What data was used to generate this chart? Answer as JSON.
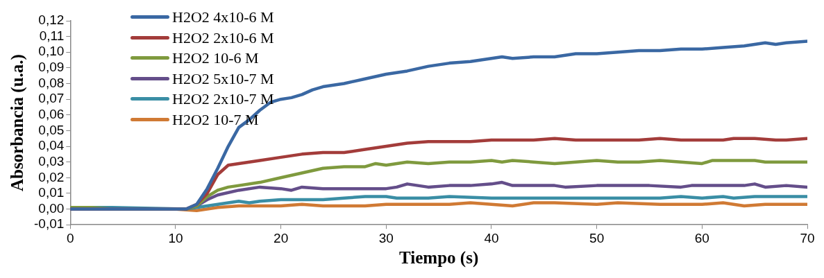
{
  "chart_data": {
    "type": "line",
    "xlabel": "Tiempo (s)",
    "ylabel": "Absorbancia (u.a.)",
    "legend": "top left",
    "marker": "none",
    "line_style": "solid",
    "xlim": [
      0,
      70
    ],
    "xticks": [
      0,
      10,
      20,
      30,
      40,
      50,
      60,
      70
    ],
    "ylim": [
      -0.01,
      0.12
    ],
    "yticks": [
      {
        "value": -0.01,
        "label": "-0,01"
      },
      {
        "value": 0,
        "label": "0,00"
      },
      {
        "value": 0.01,
        "label": "0,01"
      },
      {
        "value": 0.02,
        "label": "0,02"
      },
      {
        "value": 0.03,
        "label": "0,03"
      },
      {
        "value": 0.04,
        "label": "0,04"
      },
      {
        "value": 0.05,
        "label": "0,05"
      },
      {
        "value": 0.06,
        "label": "0,06"
      },
      {
        "value": 0.07,
        "label": "0,07"
      },
      {
        "value": 0.08,
        "label": "0,08"
      },
      {
        "value": 0.09,
        "label": "0,09"
      },
      {
        "value": 0.1,
        "label": "0,10"
      },
      {
        "value": 0.11,
        "label": "0,11"
      },
      {
        "value": 0.12,
        "label": "0,12"
      }
    ],
    "series": [
      {
        "name": "H2O2 4x10-6 M",
        "color": "#3a68a3",
        "x": [
          0,
          11,
          12,
          13,
          14,
          15,
          16,
          17,
          18,
          19,
          20,
          21,
          22,
          23,
          24,
          26,
          28,
          30,
          32,
          34,
          36,
          38,
          40,
          41,
          42,
          44,
          46,
          48,
          50,
          52,
          54,
          56,
          58,
          60,
          62,
          64,
          66,
          67,
          68,
          70
        ],
        "values": [
          0,
          0,
          0.003,
          0.013,
          0.026,
          0.04,
          0.052,
          0.057,
          0.063,
          0.068,
          0.07,
          0.071,
          0.073,
          0.076,
          0.078,
          0.08,
          0.083,
          0.086,
          0.088,
          0.091,
          0.093,
          0.094,
          0.096,
          0.097,
          0.096,
          0.097,
          0.097,
          0.099,
          0.099,
          0.1,
          0.101,
          0.101,
          0.102,
          0.102,
          0.103,
          0.104,
          0.106,
          0.105,
          0.106,
          0.107
        ]
      },
      {
        "name": "H2O2 2x10-6 M",
        "color": "#a33c3a",
        "x": [
          0,
          11,
          12,
          13,
          14,
          15,
          16,
          18,
          20,
          22,
          24,
          26,
          28,
          30,
          32,
          34,
          36,
          38,
          40,
          42,
          44,
          46,
          48,
          50,
          52,
          54,
          56,
          58,
          60,
          62,
          63,
          65,
          67,
          68,
          70
        ],
        "values": [
          0,
          0,
          0.003,
          0.01,
          0.022,
          0.028,
          0.029,
          0.031,
          0.033,
          0.035,
          0.036,
          0.036,
          0.038,
          0.04,
          0.042,
          0.043,
          0.043,
          0.043,
          0.044,
          0.044,
          0.044,
          0.045,
          0.044,
          0.044,
          0.044,
          0.044,
          0.045,
          0.044,
          0.044,
          0.044,
          0.045,
          0.045,
          0.044,
          0.044,
          0.045
        ]
      },
      {
        "name": "H2O2 10-6 M",
        "color": "#7f9a3e",
        "x": [
          0,
          2,
          4,
          11,
          12,
          13,
          14,
          15,
          16,
          18,
          20,
          22,
          24,
          26,
          28,
          29,
          30,
          32,
          34,
          36,
          38,
          40,
          41,
          42,
          44,
          46,
          48,
          50,
          52,
          54,
          56,
          58,
          60,
          61,
          64,
          65,
          66,
          68,
          70
        ],
        "values": [
          0.001,
          0.001,
          0,
          0,
          0.002,
          0.008,
          0.012,
          0.014,
          0.015,
          0.017,
          0.02,
          0.023,
          0.026,
          0.027,
          0.027,
          0.029,
          0.028,
          0.03,
          0.029,
          0.03,
          0.03,
          0.031,
          0.03,
          0.031,
          0.03,
          0.029,
          0.03,
          0.031,
          0.03,
          0.03,
          0.031,
          0.03,
          0.029,
          0.031,
          0.031,
          0.031,
          0.03,
          0.03,
          0.03
        ]
      },
      {
        "name": "H2O2 5x10-7 M",
        "color": "#644e8a",
        "x": [
          0,
          11,
          12,
          13,
          14,
          16,
          18,
          20,
          21,
          22,
          24,
          26,
          28,
          30,
          31,
          32,
          34,
          36,
          38,
          40,
          41,
          42,
          44,
          46,
          47,
          50,
          52,
          54,
          55,
          58,
          59,
          62,
          64,
          65,
          66,
          68,
          70
        ],
        "values": [
          0,
          0,
          0.002,
          0.006,
          0.009,
          0.012,
          0.014,
          0.013,
          0.012,
          0.014,
          0.013,
          0.013,
          0.013,
          0.013,
          0.014,
          0.016,
          0.014,
          0.015,
          0.015,
          0.016,
          0.017,
          0.015,
          0.015,
          0.015,
          0.014,
          0.015,
          0.015,
          0.015,
          0.015,
          0.014,
          0.015,
          0.015,
          0.015,
          0.016,
          0.014,
          0.015,
          0.014
        ]
      },
      {
        "name": "H2O2 2x10-7 M",
        "color": "#3a8ea5",
        "x": [
          0,
          2,
          4,
          11,
          12,
          14,
          16,
          17,
          18,
          20,
          22,
          24,
          26,
          28,
          30,
          31,
          34,
          36,
          40,
          42,
          44,
          50,
          56,
          58,
          60,
          62,
          63,
          65,
          70
        ],
        "values": [
          0,
          0.001,
          0.001,
          0,
          0.001,
          0.003,
          0.005,
          0.004,
          0.005,
          0.006,
          0.006,
          0.006,
          0.007,
          0.008,
          0.008,
          0.007,
          0.007,
          0.008,
          0.007,
          0.007,
          0.007,
          0.007,
          0.007,
          0.008,
          0.007,
          0.008,
          0.007,
          0.008,
          0.008
        ]
      },
      {
        "name": "H2O2 10-7 M",
        "color": "#d07a34",
        "x": [
          0,
          10,
          12,
          14,
          16,
          20,
          22,
          24,
          28,
          30,
          36,
          38,
          42,
          44,
          46,
          50,
          52,
          56,
          60,
          62,
          64,
          66,
          70
        ],
        "values": [
          0,
          0,
          -0.001,
          0.001,
          0.002,
          0.002,
          0.003,
          0.002,
          0.002,
          0.003,
          0.003,
          0.004,
          0.002,
          0.004,
          0.004,
          0.003,
          0.004,
          0.003,
          0.003,
          0.004,
          0.002,
          0.003,
          0.003
        ]
      }
    ]
  }
}
